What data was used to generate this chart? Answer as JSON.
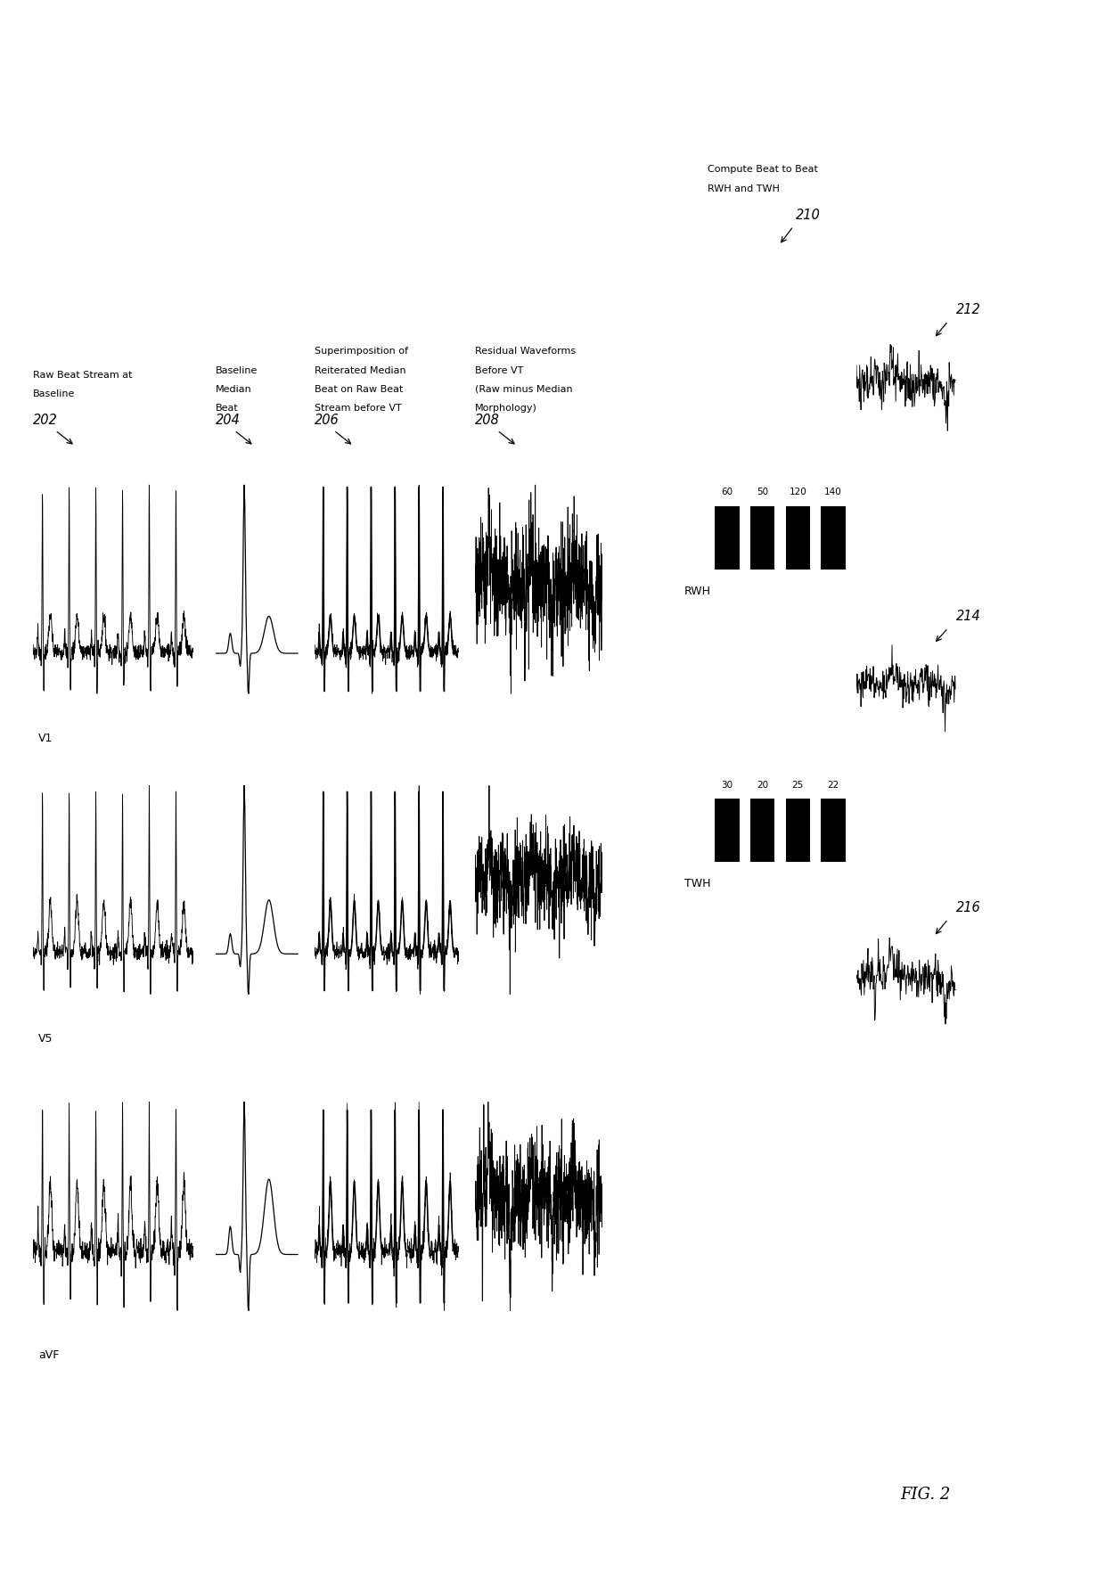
{
  "background_color": "#ffffff",
  "text_color": "#000000",
  "fig_label": "FIG. 2",
  "col_labels": {
    "202": [
      "Raw Beat Stream at",
      "Baseline"
    ],
    "204": [
      "Baseline",
      "Median",
      "Beat"
    ],
    "206": [
      "Superimposition of",
      "Reiterated Median",
      "Beat on Raw Beat",
      "Stream before VT"
    ],
    "208": [
      "Residual Waveforms",
      "Before VT",
      "(Raw minus Median",
      "Morphology)"
    ],
    "210": [
      "Compute Beat to Beat",
      "RWH and TWH"
    ]
  },
  "lead_names": [
    "V1",
    "V5",
    "aVF"
  ],
  "rwh_values": [
    60,
    50,
    120,
    140
  ],
  "twh_values": [
    30,
    20,
    25,
    22
  ],
  "rwh_label": "RWH",
  "twh_label": "TWH",
  "ref_ids": [
    "202",
    "204",
    "206",
    "208",
    "210",
    "212",
    "214",
    "216"
  ]
}
